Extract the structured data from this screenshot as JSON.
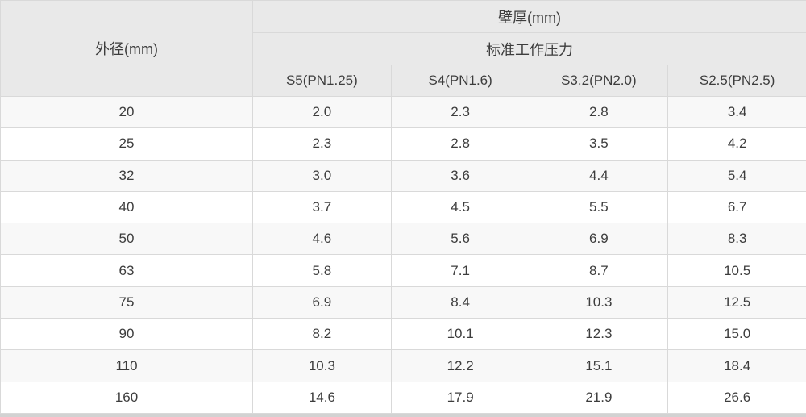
{
  "chart_data": {
    "type": "table",
    "col_header": "外径(mm)",
    "group_header": "壁厚(mm)",
    "subgroup_header": "标准工作压力",
    "columns": [
      "S5(PN1.25)",
      "S4(PN1.6)",
      "S3.2(PN2.0)",
      "S2.5(PN2.5)"
    ],
    "rows": [
      {
        "od": "20",
        "values": [
          "2.0",
          "2.3",
          "2.8",
          "3.4"
        ]
      },
      {
        "od": "25",
        "values": [
          "2.3",
          "2.8",
          "3.5",
          "4.2"
        ]
      },
      {
        "od": "32",
        "values": [
          "3.0",
          "3.6",
          "4.4",
          "5.4"
        ]
      },
      {
        "od": "40",
        "values": [
          "3.7",
          "4.5",
          "5.5",
          "6.7"
        ]
      },
      {
        "od": "50",
        "values": [
          "4.6",
          "5.6",
          "6.9",
          "8.3"
        ]
      },
      {
        "od": "63",
        "values": [
          "5.8",
          "7.1",
          "8.7",
          "10.5"
        ]
      },
      {
        "od": "75",
        "values": [
          "6.9",
          "8.4",
          "10.3",
          "12.5"
        ]
      },
      {
        "od": "90",
        "values": [
          "8.2",
          "10.1",
          "12.3",
          "15.0"
        ]
      },
      {
        "od": "110",
        "values": [
          "10.3",
          "12.2",
          "15.1",
          "18.4"
        ]
      },
      {
        "od": "160",
        "values": [
          "14.6",
          "17.9",
          "21.9",
          "26.6"
        ]
      }
    ],
    "layout": {
      "grid": true,
      "zebra_striping": "odd-rows-shaded",
      "header_rows": 3
    }
  },
  "colors": {
    "header_bg": "#e9e9e9",
    "stripe_bg": "#f8f8f8",
    "row_bg": "#ffffff",
    "border": "#d9d9d9",
    "text": "#3d3d3d",
    "bottom_bar": "#d2d2d2"
  }
}
